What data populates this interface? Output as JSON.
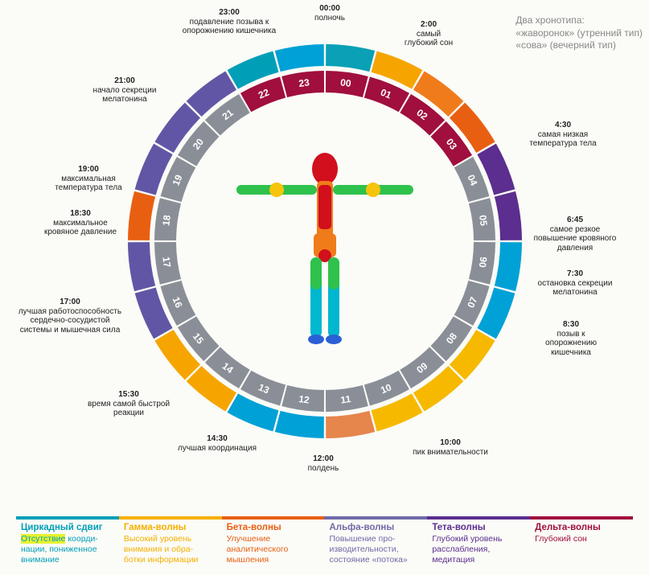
{
  "clock": {
    "type": "circular-infographic",
    "hours": [
      "00",
      "01",
      "02",
      "03",
      "04",
      "05",
      "06",
      "07",
      "08",
      "09",
      "10",
      "11",
      "12",
      "13",
      "14",
      "15",
      "16",
      "17",
      "18",
      "19",
      "20",
      "21",
      "22",
      "23"
    ],
    "inner_ring_colors": [
      "#a00f3d",
      "#a00f3d",
      "#a00f3d",
      "#a00f3d",
      "#8a8f97",
      "#8a8f97",
      "#8a8f97",
      "#8a8f97",
      "#8a8f97",
      "#8a8f97",
      "#8a8f97",
      "#8a8f97",
      "#8a8f97",
      "#8a8f97",
      "#8a8f97",
      "#8a8f97",
      "#8a8f97",
      "#8a8f97",
      "#8a8f97",
      "#8a8f97",
      "#8a8f97",
      "#8a8f97",
      "#a00f3d",
      "#a00f3d"
    ],
    "outer_ring_colors": [
      "#0aa0b5",
      "#f6a500",
      "#f07b1a",
      "#e95f12",
      "#5b2e8f",
      "#5b2e8f",
      "#00a1d6",
      "#00a1d6",
      "#f6b900",
      "#f6b900",
      "#f6b900",
      "#e6854c",
      "#00a1d6",
      "#00a1d6",
      "#f6a500",
      "#f6a500",
      "#6156a5",
      "#6156a5",
      "#e95f12",
      "#6156a5",
      "#6156a5",
      "#6156a5",
      "#009fb7",
      "#00a1d6"
    ],
    "background_inner": "#ffffff",
    "gap_color": "#ffffff",
    "hour_font_color": "#ffffff",
    "hour_font_size": 12,
    "annotation_font_size": 10,
    "annotation_color": "#222222"
  },
  "annotations": [
    {
      "time": "00:00",
      "label": "полночь"
    },
    {
      "time": "2:00",
      "label": "самый глубокий сон"
    },
    {
      "time": "4:30",
      "label": "самая низкая температура тела"
    },
    {
      "time": "6:45",
      "label": "самое резкое повышение кровяного давления"
    },
    {
      "time": "7:30",
      "label": "остановка секреции мелатонина"
    },
    {
      "time": "8:30",
      "label": "позыв к опорожнению кишечника"
    },
    {
      "time": "10:00",
      "label": "пик внимательности"
    },
    {
      "time": "12:00",
      "label": "полдень"
    },
    {
      "time": "14:30",
      "label": "лучшая координация"
    },
    {
      "time": "15:30",
      "label": "время самой быстрой реакции"
    },
    {
      "time": "17:00",
      "label": "лучшая работоспособность сердечно-сосудистой системы и мышечная сила"
    },
    {
      "time": "18:30",
      "label": "максимальное кровяное давление"
    },
    {
      "time": "19:00",
      "label": "максимальная температура тела"
    },
    {
      "time": "21:00",
      "label": "начало секреции мелатонина"
    },
    {
      "time": "23:00",
      "label": "подавление позыва к опорожнению кишечника"
    }
  ],
  "chronotype": {
    "head": "Два хронотипа:",
    "lark": "«жаворонок» (утренний тип)",
    "owl": "«сова» (вечерний тип)"
  },
  "legend": [
    {
      "title": "Циркадный сдвиг",
      "desc_prefix": "Отсутствие",
      "desc_rest": " коорди- нации, пониженное внимание",
      "title_color": "#009fb7",
      "border": "#009fb7",
      "highlight": true
    },
    {
      "title": "Гамма-волны",
      "desc": "Высокий уровень внимания и обра- ботки информации",
      "title_color": "#f6b000",
      "border": "#f6b000"
    },
    {
      "title": "Бета-волны",
      "desc": "Улучшение аналитического мышления",
      "title_color": "#e95f12",
      "border": "#e95f12"
    },
    {
      "title": "Альфа-волны",
      "desc": "Повышение про- изводительности, состояние «потока»",
      "title_color": "#6f6aa8",
      "border": "#6f6aa8"
    },
    {
      "title": "Тета-волны",
      "desc": "Глубокий уровень расслабления, медитация",
      "title_color": "#5b2e8f",
      "border": "#5b2e8f"
    },
    {
      "title": "Дельта-волны",
      "desc": "Глубокий сон",
      "title_color": "#a00f3d",
      "border": "#a00f3d"
    }
  ],
  "body_figure": {
    "note": "thermal human figure centered",
    "colors": [
      "#d20f1d",
      "#f07b1a",
      "#f6c40a",
      "#2ec24c",
      "#00b7d0",
      "#2a5fd6"
    ]
  }
}
